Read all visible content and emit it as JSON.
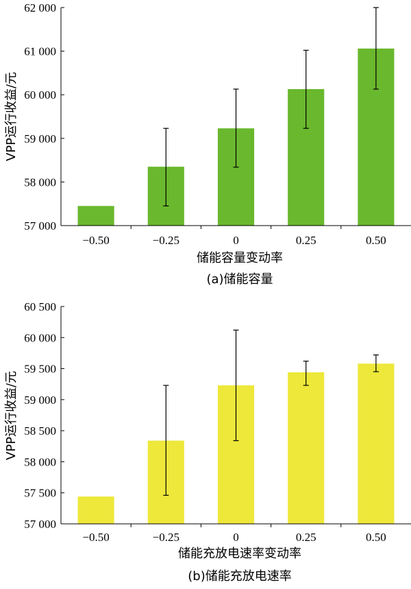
{
  "chart_data": [
    {
      "type": "bar",
      "caption": "(a)储能容量",
      "xlabel": "储能容量变动率",
      "ylabel": "VPP运行收益/元",
      "categories": [
        "−0.50",
        "−0.25",
        "0",
        "0.25",
        "0.50"
      ],
      "values": [
        57450,
        58350,
        59230,
        60130,
        61060
      ],
      "error_low": [
        57450,
        57450,
        58340,
        59230,
        60130
      ],
      "error_high": [
        57450,
        59230,
        60130,
        61020,
        62000
      ],
      "ylim": [
        57000,
        62000
      ],
      "yticks": [
        57000,
        58000,
        59000,
        60000,
        61000,
        62000
      ],
      "ytick_labels": [
        "57 000",
        "58 000",
        "59 000",
        "60 000",
        "61 000",
        "62 000"
      ],
      "bar_color": "#6ab82e"
    },
    {
      "type": "bar",
      "caption": "(b)储能充放电速率",
      "xlabel": "储能充放电速率变动率",
      "ylabel": "VPP运行收益/元",
      "categories": [
        "−0.50",
        "−0.25",
        "0",
        "0.25",
        "0.50"
      ],
      "values": [
        57440,
        58340,
        59230,
        59440,
        59580
      ],
      "error_low": [
        57440,
        57460,
        58340,
        59230,
        59450
      ],
      "error_high": [
        57440,
        59230,
        60120,
        59620,
        59720
      ],
      "ylim": [
        57000,
        60500
      ],
      "yticks": [
        57000,
        57500,
        58000,
        58500,
        59000,
        59500,
        60000,
        60500
      ],
      "ytick_labels": [
        "57 000",
        "57 500",
        "58 000",
        "58 500",
        "59 000",
        "59 500",
        "60 000",
        "60 500"
      ],
      "bar_color": "#ede83a"
    }
  ]
}
